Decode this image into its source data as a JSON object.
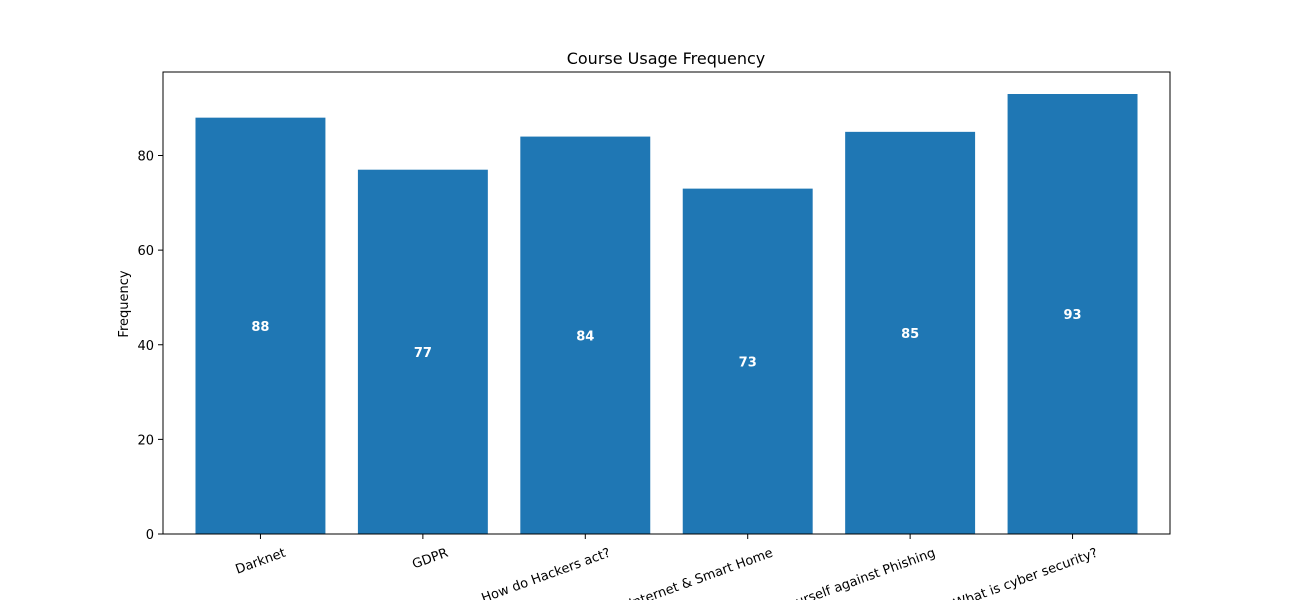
{
  "chart_data": {
    "type": "bar",
    "title": "Course Usage Frequency",
    "xlabel": "",
    "ylabel": "Frequency",
    "categories": [
      "Darknet",
      "GDPR",
      "How do Hackers act?",
      "Internet & Smart Home",
      "Protect yourself against Phishing",
      "What is cyber security?"
    ],
    "values": [
      88,
      77,
      84,
      73,
      85,
      93
    ],
    "ylim": [
      0,
      97.65
    ],
    "yticks": [
      0,
      20,
      40,
      60,
      80
    ],
    "grid": false,
    "legend": "none",
    "bar_color": "#1f77b4",
    "label_color": "#ffffff"
  }
}
